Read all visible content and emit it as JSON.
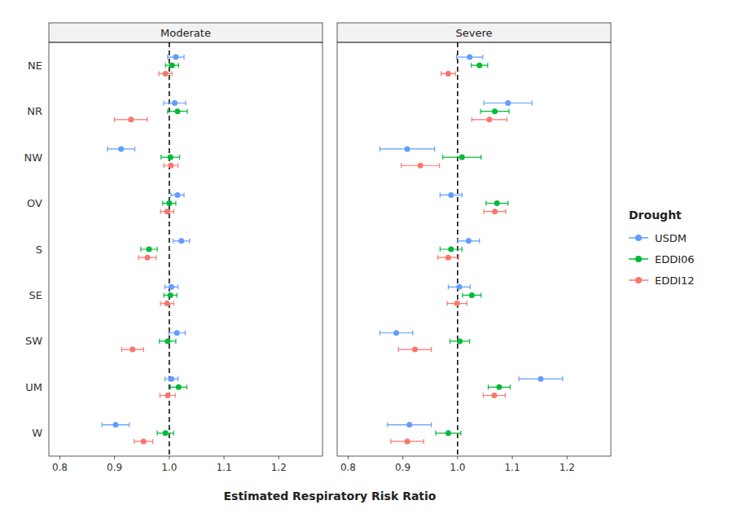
{
  "chart_data": [
    {
      "type": "dot",
      "title": "Moderate",
      "x_label": "Estimated Respiratory Risk Ratio",
      "grid": false,
      "categories": [
        "NE",
        "NR",
        "NW",
        "OV",
        "S",
        "SE",
        "SW",
        "UM",
        "W"
      ],
      "xlim": [
        0.78,
        1.28
      ],
      "xticks": [
        0.8,
        0.9,
        {
          "value": 1.0,
          "label": "1.0"
        },
        1.1,
        1.2
      ],
      "vline": 1.0,
      "series": [
        {
          "name": "USDM",
          "color": "#619CFF",
          "values": [
            1.012,
            1.01,
            0.912,
            1.015,
            1.022,
            1.004,
            1.014,
            1.004,
            0.902
          ],
          "lo": [
            0.997,
            0.99,
            0.887,
            1.003,
            1.007,
            0.992,
            0.999,
            0.992,
            0.877
          ],
          "hi": [
            1.027,
            1.03,
            0.937,
            1.027,
            1.037,
            1.016,
            1.029,
            1.016,
            0.927
          ]
        },
        {
          "name": "EDDI06",
          "color": "#00BA38",
          "values": [
            1.005,
            1.015,
            1.002,
            1.0,
            0.963,
            1.002,
            0.997,
            1.017,
            0.993
          ],
          "lo": [
            0.993,
            0.997,
            0.985,
            0.988,
            0.948,
            0.99,
            0.982,
            1.002,
            0.978
          ],
          "hi": [
            1.017,
            1.033,
            1.019,
            1.012,
            0.978,
            1.014,
            1.012,
            1.032,
            1.008
          ]
        },
        {
          "name": "EDDI12",
          "color": "#F8766D",
          "values": [
            0.993,
            0.93,
            1.003,
            0.996,
            0.96,
            0.996,
            0.933,
            0.997,
            0.953
          ],
          "lo": [
            0.981,
            0.9,
            0.99,
            0.984,
            0.944,
            0.984,
            0.913,
            0.983,
            0.936
          ],
          "hi": [
            1.005,
            0.96,
            1.016,
            1.008,
            0.976,
            1.008,
            0.953,
            1.011,
            0.97
          ]
        }
      ]
    },
    {
      "type": "dot",
      "title": "Severe",
      "grid": false,
      "tick_labels": "x",
      "legend": "right",
      "legend_title": "Drought",
      "categories": [
        "NE",
        "NR",
        "NW",
        "OV",
        "S",
        "SE",
        "SW",
        "UM",
        "W"
      ],
      "xlim": [
        0.78,
        1.28
      ],
      "xticks": [
        0.8,
        0.9,
        {
          "value": 1.0,
          "label": "1.0"
        },
        1.1,
        1.2
      ],
      "vline": 1.0,
      "series": [
        {
          "name": "USDM",
          "color": "#619CFF",
          "values": [
            1.022,
            1.092,
            0.908,
            0.988,
            1.02,
            1.003,
            0.888,
            1.152,
            0.912
          ],
          "lo": [
            0.998,
            1.048,
            0.858,
            0.968,
            1.0,
            0.983,
            0.858,
            1.112,
            0.872
          ],
          "hi": [
            1.046,
            1.136,
            0.958,
            1.008,
            1.04,
            1.023,
            0.918,
            1.192,
            0.952
          ]
        },
        {
          "name": "EDDI06",
          "color": "#00BA38",
          "values": [
            1.04,
            1.068,
            1.008,
            1.072,
            0.988,
            1.026,
            1.004,
            1.076,
            0.983
          ],
          "lo": [
            1.025,
            1.042,
            0.973,
            1.052,
            0.968,
            1.009,
            0.986,
            1.056,
            0.96
          ],
          "hi": [
            1.055,
            1.094,
            1.043,
            1.092,
            1.008,
            1.043,
            1.022,
            1.096,
            1.006
          ]
        },
        {
          "name": "EDDI12",
          "color": "#F8766D",
          "values": [
            0.983,
            1.058,
            0.932,
            1.068,
            0.983,
            0.999,
            0.922,
            1.067,
            0.908
          ],
          "lo": [
            0.97,
            1.026,
            0.897,
            1.048,
            0.964,
            0.981,
            0.892,
            1.047,
            0.878
          ],
          "hi": [
            0.996,
            1.09,
            0.967,
            1.088,
            1.002,
            1.017,
            0.952,
            1.087,
            0.938
          ]
        }
      ]
    }
  ]
}
